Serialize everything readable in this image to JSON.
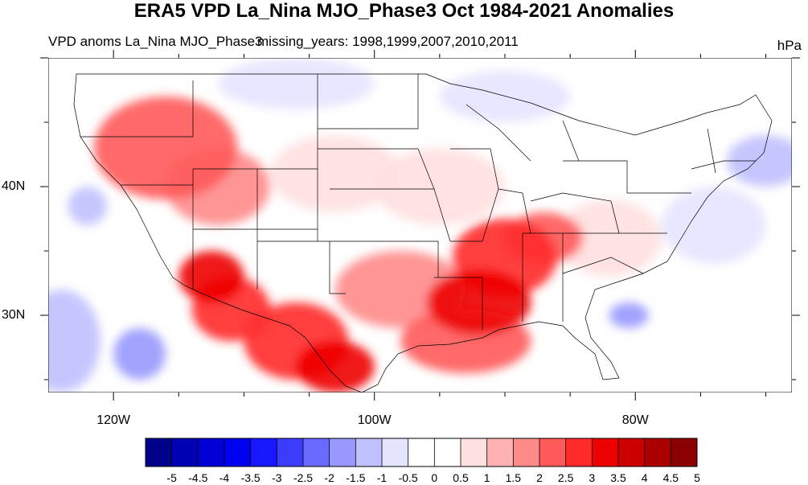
{
  "title": "ERA5 VPD La_Nina MJO_Phase3 Oct 1984-2021 Anomalies",
  "subtitle_left": "VPD anoms La_Nina MJO_Phase3",
  "subtitle_overlap": "missing_years: 1998,1999,2007,2010,2011",
  "units": "hPa",
  "lat_labels": [
    {
      "text": "40N",
      "lat": 40
    },
    {
      "text": "30N",
      "lat": 30
    }
  ],
  "lon_labels": [
    {
      "text": "120W",
      "lon": -120
    },
    {
      "text": "100W",
      "lon": -100
    },
    {
      "text": "80W",
      "lon": -80
    }
  ],
  "map_extent": {
    "lon_min": -125,
    "lon_max": -68,
    "lat_min": 24,
    "lat_max": 50
  },
  "colorbar": {
    "labels": [
      "-5",
      "-4.5",
      "-4",
      "-3.5",
      "-3",
      "-2.5",
      "-2",
      "-1.5",
      "-1",
      "-0.5",
      "0",
      "0.5",
      "1",
      "1.5",
      "2",
      "2.5",
      "3",
      "3.5",
      "4",
      "4.5",
      "5"
    ],
    "colors": [
      "#00008b",
      "#0000b5",
      "#0000d6",
      "#0000f0",
      "#1818ff",
      "#3c3cff",
      "#6a6aff",
      "#9898ff",
      "#c0c0ff",
      "#e4e4ff",
      "#ffffff",
      "#ffffff",
      "#ffe0e0",
      "#ffb2b2",
      "#ff8a8a",
      "#ff5a5a",
      "#ff2a2a",
      "#ee0000",
      "#cc0000",
      "#aa0000",
      "#8b0000"
    ]
  },
  "anomaly_regions": [
    {
      "lon": -116,
      "lat": 43,
      "rx": 5.5,
      "ry": 4,
      "level": 2.5
    },
    {
      "lon": -112,
      "lat": 40,
      "rx": 4,
      "ry": 3,
      "level": 2
    },
    {
      "lon": -112.5,
      "lat": 33,
      "rx": 2.5,
      "ry": 2,
      "level": 3.5
    },
    {
      "lon": -111,
      "lat": 30.5,
      "rx": 3,
      "ry": 2.5,
      "level": 3
    },
    {
      "lon": -106,
      "lat": 28,
      "rx": 4,
      "ry": 3,
      "level": 3
    },
    {
      "lon": -103,
      "lat": 26,
      "rx": 3,
      "ry": 2,
      "level": 3.5
    },
    {
      "lon": -92,
      "lat": 31,
      "rx": 4,
      "ry": 2.5,
      "level": 3.5
    },
    {
      "lon": -90,
      "lat": 34.5,
      "rx": 4,
      "ry": 3,
      "level": 3
    },
    {
      "lon": -87,
      "lat": 36,
      "rx": 3,
      "ry": 2,
      "level": 2.5
    },
    {
      "lon": -93,
      "lat": 28,
      "rx": 5,
      "ry": 2.5,
      "level": 2.5
    },
    {
      "lon": -98,
      "lat": 32,
      "rx": 5,
      "ry": 3,
      "level": 2
    },
    {
      "lon": -103,
      "lat": 41,
      "rx": 5,
      "ry": 3,
      "level": 1
    },
    {
      "lon": -95,
      "lat": 40,
      "rx": 5,
      "ry": 3,
      "level": 1
    },
    {
      "lon": -82,
      "lat": 36,
      "rx": 4,
      "ry": 3,
      "level": 1
    },
    {
      "lon": -84,
      "lat": 41,
      "rx": 4,
      "ry": 2,
      "level": 0.5
    },
    {
      "lon": -124,
      "lat": 28,
      "rx": 3,
      "ry": 4,
      "level": -1
    },
    {
      "lon": -118,
      "lat": 27,
      "rx": 2,
      "ry": 2,
      "level": -1.5
    },
    {
      "lon": -122,
      "lat": 38.5,
      "rx": 1.5,
      "ry": 1.5,
      "level": -1
    },
    {
      "lon": -80.5,
      "lat": 30,
      "rx": 1.5,
      "ry": 1,
      "level": -1.5
    },
    {
      "lon": -74,
      "lat": 37,
      "rx": 4,
      "ry": 3,
      "level": -0.5
    },
    {
      "lon": -70,
      "lat": 42,
      "rx": 3,
      "ry": 2,
      "level": -1
    },
    {
      "lon": -106,
      "lat": 48,
      "rx": 6,
      "ry": 2,
      "level": -0.5
    },
    {
      "lon": -90,
      "lat": 47,
      "rx": 5,
      "ry": 2,
      "level": -0.5
    }
  ]
}
